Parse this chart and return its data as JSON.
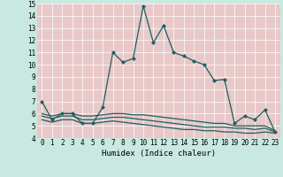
{
  "xlabel": "Humidex (Indice chaleur)",
  "background_color": "#c8e8e0",
  "plot_bg_color": "#e8c8c8",
  "line_color": "#1a6060",
  "grid_color": "#ffffff",
  "x": [
    0,
    1,
    2,
    3,
    4,
    5,
    6,
    7,
    8,
    9,
    10,
    11,
    12,
    13,
    14,
    15,
    16,
    17,
    18,
    19,
    20,
    21,
    22,
    23
  ],
  "line1": [
    7.0,
    5.5,
    6.0,
    6.0,
    5.2,
    5.2,
    6.5,
    11.0,
    10.2,
    10.5,
    14.8,
    11.8,
    13.2,
    11.0,
    10.7,
    10.3,
    10.0,
    8.7,
    8.8,
    5.2,
    5.8,
    5.5,
    6.3,
    4.5
  ],
  "line2": [
    6.0,
    5.8,
    6.0,
    6.0,
    5.8,
    5.8,
    5.9,
    6.0,
    6.0,
    5.9,
    5.9,
    5.8,
    5.7,
    5.6,
    5.5,
    5.4,
    5.3,
    5.2,
    5.2,
    5.0,
    5.0,
    5.0,
    5.0,
    4.6
  ],
  "line3": [
    5.8,
    5.6,
    5.8,
    5.8,
    5.5,
    5.5,
    5.6,
    5.7,
    5.7,
    5.6,
    5.5,
    5.4,
    5.3,
    5.2,
    5.1,
    5.0,
    4.9,
    4.9,
    4.9,
    4.8,
    4.8,
    4.7,
    4.8,
    4.5
  ],
  "line4": [
    5.5,
    5.3,
    5.5,
    5.5,
    5.2,
    5.2,
    5.3,
    5.4,
    5.3,
    5.2,
    5.1,
    5.0,
    4.9,
    4.8,
    4.7,
    4.7,
    4.6,
    4.6,
    4.5,
    4.5,
    4.4,
    4.4,
    4.5,
    4.4
  ],
  "ylim": [
    4,
    15
  ],
  "xlim": [
    -0.5,
    23.5
  ],
  "yticks": [
    4,
    5,
    6,
    7,
    8,
    9,
    10,
    11,
    12,
    13,
    14,
    15
  ],
  "xticks": [
    0,
    1,
    2,
    3,
    4,
    5,
    6,
    7,
    8,
    9,
    10,
    11,
    12,
    13,
    14,
    15,
    16,
    17,
    18,
    19,
    20,
    21,
    22,
    23
  ],
  "markersize": 2.5,
  "linewidth": 0.9,
  "tick_fontsize": 5.5,
  "xlabel_fontsize": 6.5
}
